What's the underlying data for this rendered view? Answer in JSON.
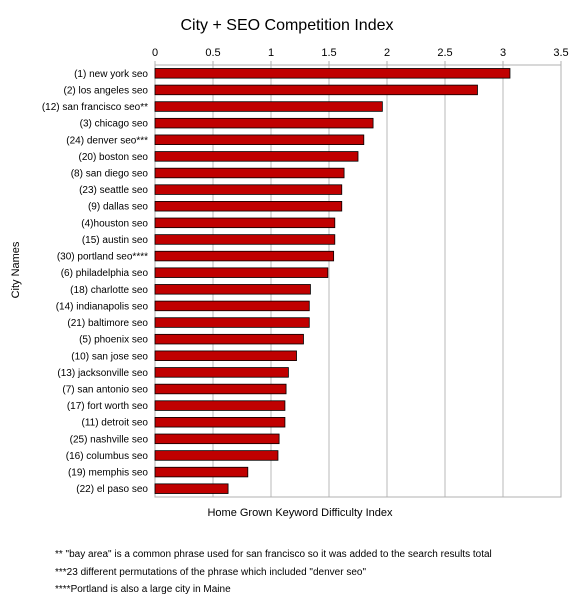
{
  "chart_data": {
    "type": "bar",
    "orientation": "horizontal",
    "title": "City + SEO Competition Index",
    "xlabel": "Home Grown Keyword Difficulty Index",
    "ylabel": "City Names",
    "xlim": [
      0,
      3.5
    ],
    "xticks": [
      0,
      0.5,
      1,
      1.5,
      2,
      2.5,
      3,
      3.5
    ],
    "xtick_labels": [
      "0",
      "0.5",
      "1",
      "1.5",
      "2",
      "2.5",
      "3",
      "3.5"
    ],
    "x_axis_position": "top",
    "grid": "vertical",
    "bar_color": "#c00000",
    "categories": [
      "(1) new york seo",
      "(2) los angeles seo",
      "(12) san francisco seo**",
      "(3) chicago seo",
      "(24) denver seo***",
      "(20) boston seo",
      "(8) san diego seo",
      "(23) seattle seo",
      "(9) dallas seo",
      "(4)houston seo",
      "(15) austin seo",
      "(30) portland seo****",
      "(6) philadelphia seo",
      "(18) charlotte seo",
      "(14) indianapolis seo",
      "(21) baltimore seo",
      "(5) phoenix seo",
      "(10) san jose seo",
      "(13) jacksonville seo",
      "(7) san antonio seo",
      "(17) fort worth seo",
      "(11) detroit seo",
      "(25) nashville seo",
      "(16) columbus seo",
      "(19) memphis seo",
      "(22) el paso seo"
    ],
    "values": [
      3.06,
      2.78,
      1.96,
      1.88,
      1.8,
      1.75,
      1.63,
      1.61,
      1.61,
      1.55,
      1.55,
      1.54,
      1.49,
      1.34,
      1.33,
      1.33,
      1.28,
      1.22,
      1.15,
      1.13,
      1.12,
      1.12,
      1.07,
      1.06,
      0.8,
      0.63
    ]
  },
  "footnotes": [
    "** \"bay area\" is a common phrase used for san francisco so it was added to the search results total",
    "***23 different permutations of the phrase which included \"denver seo\"",
    "****Portland is also a large city in Maine"
  ]
}
